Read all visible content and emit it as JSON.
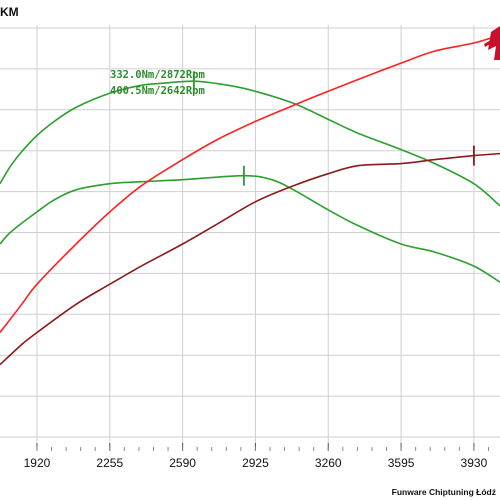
{
  "header": {
    "left_text": "KM"
  },
  "footer": {
    "credit": "Funware Chiptuning Łódź"
  },
  "colors": {
    "grid": "#cfcfcf",
    "power_tuned": "#ff2020",
    "power_stock": "#8b1a1a",
    "torque_tuned": "#2e9e2e",
    "torque_stock": "#2e9e2e",
    "logo": "#c8102e"
  },
  "annotations": {
    "line1": "332.0Nm/2872Rpm",
    "line2": "400.5Nm/2642Rpm"
  },
  "chart_data": {
    "type": "line",
    "title": "",
    "xlabel": "",
    "ylabel": "",
    "x_ticks": [
      "1920",
      "2255",
      "2590",
      "2925",
      "3260",
      "3595",
      "3930"
    ],
    "xlim": [
      1750,
      4050
    ],
    "ylim": [
      0,
      100
    ],
    "grid": true,
    "series": [
      {
        "key": "torque_tuned",
        "points": [
          [
            1750,
            63
          ],
          [
            1800,
            67.5
          ],
          [
            1850,
            71
          ],
          [
            1920,
            75
          ],
          [
            2000,
            78.5
          ],
          [
            2100,
            82
          ],
          [
            2255,
            85.5
          ],
          [
            2400,
            87.5
          ],
          [
            2500,
            88
          ],
          [
            2642,
            88.5
          ],
          [
            2800,
            87.5
          ],
          [
            2925,
            86
          ],
          [
            3100,
            83
          ],
          [
            3260,
            79
          ],
          [
            3400,
            75.5
          ],
          [
            3595,
            71.5
          ],
          [
            3750,
            68
          ],
          [
            3930,
            63
          ],
          [
            4050,
            57.5
          ]
        ]
      },
      {
        "key": "torque_stock",
        "points": [
          [
            1750,
            48
          ],
          [
            1800,
            51
          ],
          [
            1920,
            56
          ],
          [
            2000,
            59
          ],
          [
            2100,
            61.5
          ],
          [
            2255,
            63
          ],
          [
            2400,
            63.5
          ],
          [
            2590,
            64
          ],
          [
            2872,
            65
          ],
          [
            3000,
            64
          ],
          [
            3100,
            61.5
          ],
          [
            3260,
            56.5
          ],
          [
            3400,
            52.5
          ],
          [
            3595,
            48
          ],
          [
            3750,
            46
          ],
          [
            3930,
            42.5
          ],
          [
            4050,
            38.5
          ]
        ]
      },
      {
        "key": "power_tuned",
        "points": [
          [
            1750,
            26
          ],
          [
            1850,
            33
          ],
          [
            1920,
            38
          ],
          [
            2100,
            48
          ],
          [
            2255,
            56
          ],
          [
            2400,
            62.5
          ],
          [
            2590,
            69
          ],
          [
            2750,
            74
          ],
          [
            2925,
            78.5
          ],
          [
            3100,
            82.5
          ],
          [
            3260,
            86
          ],
          [
            3400,
            89
          ],
          [
            3595,
            93
          ],
          [
            3750,
            96
          ],
          [
            3930,
            98
          ],
          [
            4050,
            100
          ]
        ]
      },
      {
        "key": "power_stock",
        "points": [
          [
            1750,
            18
          ],
          [
            1850,
            23
          ],
          [
            1920,
            26
          ],
          [
            2100,
            33
          ],
          [
            2255,
            38
          ],
          [
            2400,
            42.5
          ],
          [
            2590,
            48
          ],
          [
            2750,
            53
          ],
          [
            2925,
            58.5
          ],
          [
            3100,
            62.5
          ],
          [
            3260,
            65.5
          ],
          [
            3400,
            67.5
          ],
          [
            3595,
            68
          ],
          [
            3750,
            69
          ],
          [
            3930,
            70
          ],
          [
            4050,
            70.5
          ]
        ]
      }
    ],
    "markers": [
      {
        "series": "torque_tuned",
        "x": 2642
      },
      {
        "series": "torque_stock",
        "x": 2872
      },
      {
        "series": "power_stock",
        "x": 3930
      }
    ]
  }
}
